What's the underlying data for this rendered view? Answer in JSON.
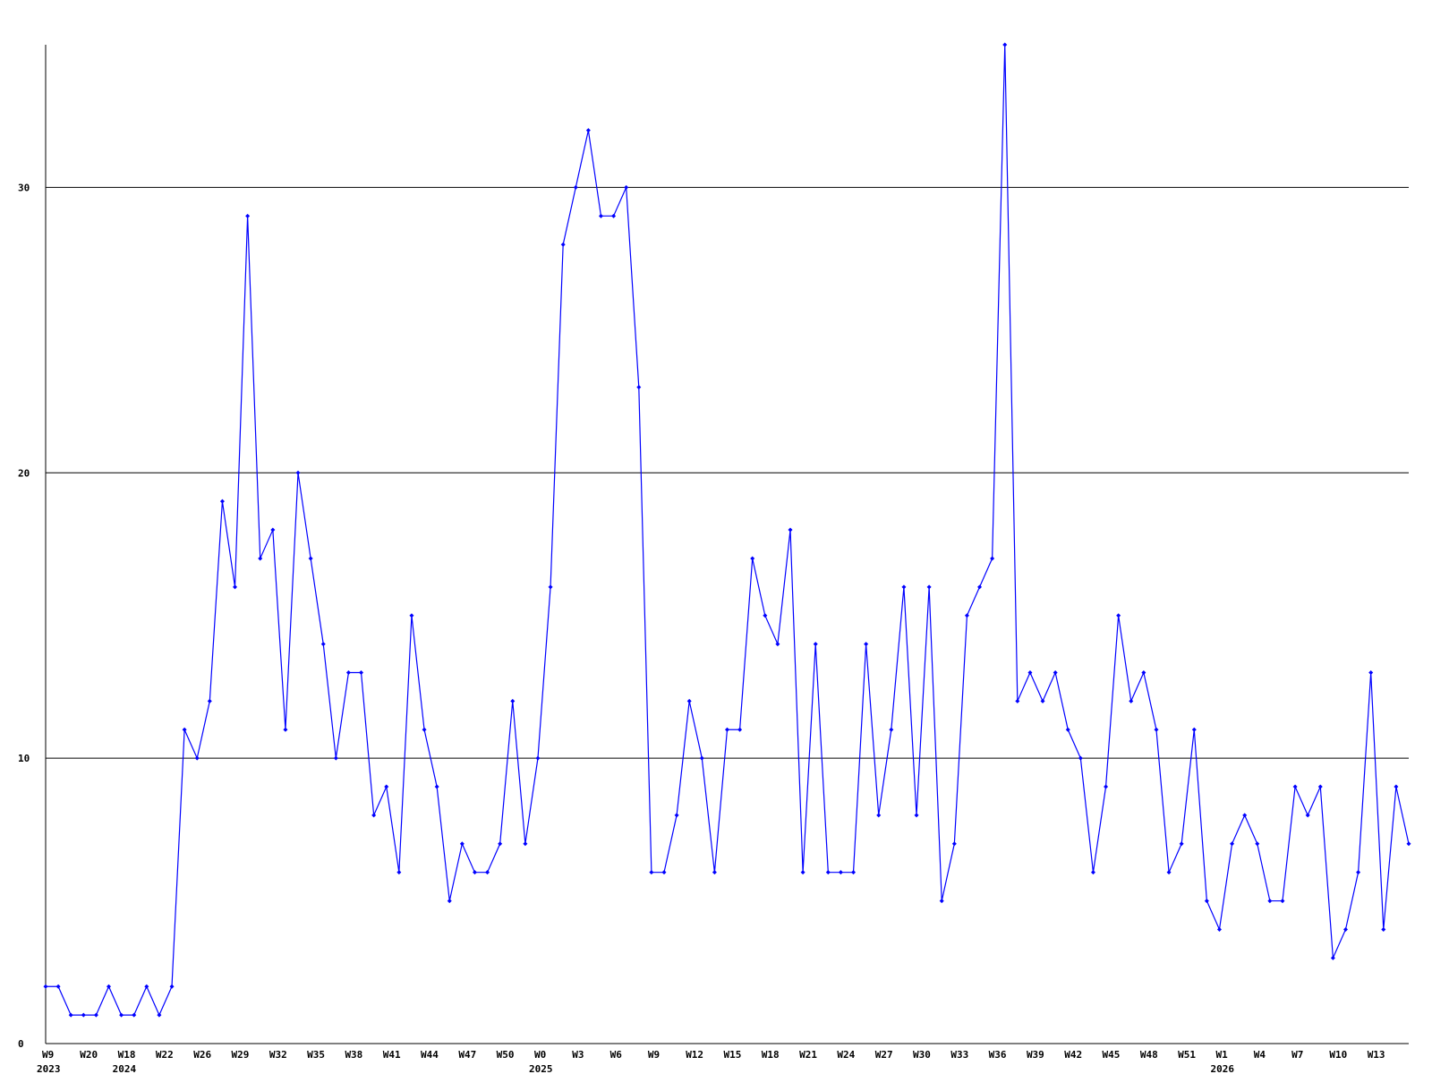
{
  "chart_data": {
    "type": "line",
    "categories": [
      "W9",
      null,
      null,
      "W20",
      null,
      null,
      "W18",
      null,
      null,
      "W22",
      null,
      null,
      "W26",
      null,
      null,
      "W29",
      null,
      null,
      "W32",
      null,
      null,
      "W35",
      null,
      null,
      "W38",
      null,
      null,
      "W41",
      null,
      null,
      "W44",
      null,
      null,
      "W47",
      null,
      null,
      "W50",
      null,
      null,
      "W0",
      null,
      null,
      "W3",
      null,
      null,
      "W6",
      null,
      null,
      "W9",
      null,
      null,
      "W12",
      null,
      null,
      "W15",
      null,
      null,
      "W18",
      null,
      null,
      "W21",
      null,
      null,
      "W24",
      null,
      null,
      "W27",
      null,
      null,
      "W30",
      null,
      null,
      "W33",
      null,
      null,
      "W36",
      null,
      null,
      "W39",
      null,
      null,
      "W42",
      null,
      null,
      "W45",
      null,
      null,
      "W48",
      null,
      null,
      "W51",
      null,
      null,
      "W1",
      null,
      null,
      "W4",
      null,
      null,
      "W7",
      null,
      null,
      "W10",
      null,
      null,
      "W13",
      null,
      null,
      null
    ],
    "year_labels": [
      "2023",
      null,
      null,
      null,
      null,
      null,
      "2024",
      null,
      null,
      null,
      null,
      null,
      null,
      null,
      null,
      null,
      null,
      null,
      null,
      null,
      null,
      null,
      null,
      null,
      null,
      null,
      null,
      null,
      null,
      null,
      null,
      null,
      null,
      null,
      null,
      null,
      null,
      null,
      null,
      "2025",
      null,
      null,
      null,
      null,
      null,
      null,
      null,
      null,
      null,
      null,
      null,
      null,
      null,
      null,
      null,
      null,
      null,
      null,
      null,
      null,
      null,
      null,
      null,
      null,
      null,
      null,
      null,
      null,
      null,
      null,
      null,
      null,
      null,
      null,
      null,
      null,
      null,
      null,
      null,
      null,
      null,
      null,
      null,
      null,
      null,
      null,
      null,
      null,
      null,
      null,
      null,
      null,
      null,
      "2026",
      null,
      null,
      null,
      null,
      null,
      null,
      null,
      null,
      null,
      null,
      null,
      null,
      null,
      null,
      null
    ],
    "series": [
      {
        "color": "#0000ff",
        "values": [
          2,
          2,
          1,
          1,
          1,
          2,
          1,
          1,
          2,
          1,
          2,
          11,
          10,
          12,
          19,
          16,
          29,
          17,
          18,
          11,
          20,
          17,
          14,
          10,
          13,
          13,
          8,
          9,
          6,
          15,
          11,
          9,
          5,
          7,
          6,
          6,
          7,
          12,
          7,
          10,
          16,
          28,
          30,
          32,
          29,
          29,
          30,
          23,
          6,
          6,
          8,
          12,
          10,
          6,
          11,
          11,
          17,
          15,
          14,
          18,
          6,
          14,
          6,
          6,
          6,
          14,
          8,
          11,
          16,
          8,
          16,
          5,
          7,
          15,
          16,
          17,
          35,
          12,
          13,
          12,
          13,
          11,
          10,
          6,
          9,
          15,
          12,
          13,
          11,
          6,
          7,
          11,
          5,
          4,
          7,
          8,
          7,
          5,
          5,
          9,
          8,
          9,
          3,
          4,
          6,
          13,
          4,
          9,
          7
        ]
      }
    ],
    "ylim": [
      0,
      35
    ],
    "yticks": [
      0,
      10,
      20,
      30
    ],
    "grid": true
  }
}
